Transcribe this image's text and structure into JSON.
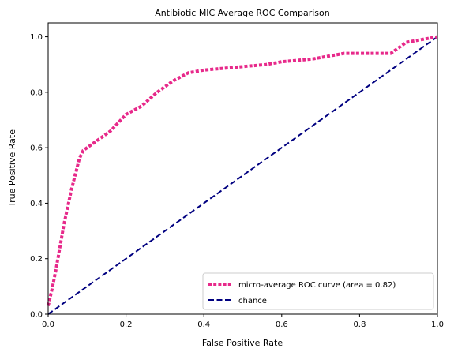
{
  "chart_data": {
    "type": "line",
    "title": "Antibiotic MIC Average ROC Comparison",
    "xlabel": "False Positive Rate",
    "ylabel": "True Positive Rate",
    "xlim": [
      0.0,
      1.0
    ],
    "ylim": [
      0.0,
      1.05
    ],
    "xticks": [
      "0.0",
      "0.2",
      "0.4",
      "0.6",
      "0.8",
      "1.0"
    ],
    "yticks": [
      "0.0",
      "0.2",
      "0.4",
      "0.6",
      "0.8",
      "1.0"
    ],
    "grid": false,
    "legend_position": "lower-right",
    "series": [
      {
        "name": "micro-average ROC curve (area = 0.82)",
        "color": "#e7298a",
        "style": "dotted",
        "x": [
          0.0,
          0.01,
          0.02,
          0.04,
          0.06,
          0.08,
          0.09,
          0.12,
          0.16,
          0.2,
          0.24,
          0.28,
          0.32,
          0.36,
          0.4,
          0.48,
          0.56,
          0.6,
          0.68,
          0.76,
          0.84,
          0.88,
          0.9,
          0.92,
          0.96,
          1.0
        ],
        "y": [
          0.03,
          0.09,
          0.16,
          0.32,
          0.45,
          0.56,
          0.59,
          0.62,
          0.66,
          0.72,
          0.75,
          0.8,
          0.84,
          0.87,
          0.88,
          0.89,
          0.9,
          0.91,
          0.92,
          0.94,
          0.94,
          0.94,
          0.96,
          0.98,
          0.99,
          1.0
        ]
      },
      {
        "name": "chance",
        "color": "#000080",
        "style": "dashed",
        "x": [
          0.0,
          1.0
        ],
        "y": [
          0.0,
          1.0
        ]
      }
    ]
  }
}
